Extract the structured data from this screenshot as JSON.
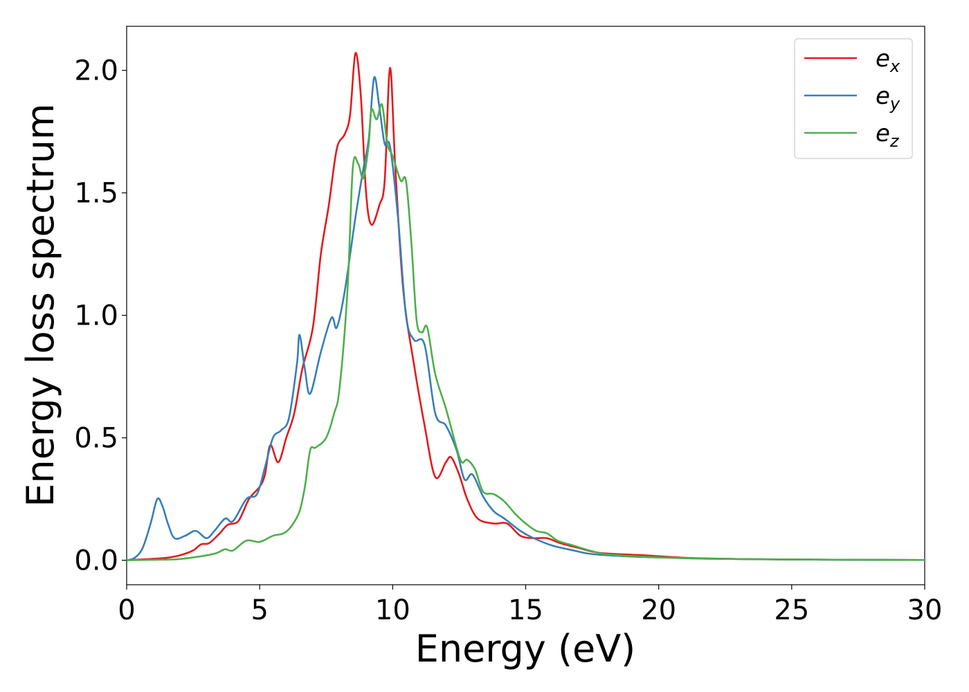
{
  "chart_data": {
    "type": "line",
    "xlabel": "Energy (eV)",
    "ylabel": "Energy loss spectrum",
    "xlim": [
      0,
      30
    ],
    "ylim": [
      -0.1,
      2.18
    ],
    "xticks": [
      0,
      5,
      10,
      15,
      20,
      25,
      30
    ],
    "xtick_labels": [
      "0",
      "5",
      "10",
      "15",
      "20",
      "25",
      "30"
    ],
    "yticks": [
      0.0,
      0.5,
      1.0,
      1.5,
      2.0
    ],
    "ytick_labels": [
      "0.0",
      "0.5",
      "1.0",
      "1.5",
      "2.0"
    ],
    "grid": false,
    "legend_position": "top-right",
    "series": [
      {
        "name": "e_x",
        "label_main": "e",
        "label_sub": "x",
        "color": "#e41a1c",
        "points": [
          [
            0,
            0
          ],
          [
            0.5,
            0.003
          ],
          [
            1,
            0.006
          ],
          [
            1.5,
            0.01
          ],
          [
            2,
            0.02
          ],
          [
            2.5,
            0.04
          ],
          [
            2.8,
            0.065
          ],
          [
            3.1,
            0.07
          ],
          [
            3.5,
            0.11
          ],
          [
            3.8,
            0.145
          ],
          [
            4.2,
            0.16
          ],
          [
            4.6,
            0.25
          ],
          [
            5.0,
            0.3
          ],
          [
            5.2,
            0.35
          ],
          [
            5.4,
            0.47
          ],
          [
            5.7,
            0.4
          ],
          [
            6.0,
            0.5
          ],
          [
            6.3,
            0.6
          ],
          [
            6.6,
            0.78
          ],
          [
            7.0,
            0.95
          ],
          [
            7.3,
            1.25
          ],
          [
            7.6,
            1.45
          ],
          [
            7.9,
            1.68
          ],
          [
            8.2,
            1.74
          ],
          [
            8.4,
            1.82
          ],
          [
            8.6,
            2.07
          ],
          [
            8.8,
            1.9
          ],
          [
            9.0,
            1.5
          ],
          [
            9.2,
            1.37
          ],
          [
            9.5,
            1.45
          ],
          [
            9.7,
            1.55
          ],
          [
            9.9,
            2.01
          ],
          [
            10.1,
            1.6
          ],
          [
            10.4,
            1.1
          ],
          [
            10.8,
            0.8
          ],
          [
            11.2,
            0.55
          ],
          [
            11.6,
            0.34
          ],
          [
            12.0,
            0.4
          ],
          [
            12.2,
            0.42
          ],
          [
            12.5,
            0.35
          ],
          [
            12.8,
            0.25
          ],
          [
            13.2,
            0.17
          ],
          [
            13.8,
            0.15
          ],
          [
            14.3,
            0.15
          ],
          [
            14.8,
            0.1
          ],
          [
            15.3,
            0.09
          ],
          [
            15.8,
            0.09
          ],
          [
            16.3,
            0.07
          ],
          [
            17.0,
            0.05
          ],
          [
            17.8,
            0.03
          ],
          [
            19.5,
            0.02
          ],
          [
            21,
            0.01
          ],
          [
            23,
            0.005
          ],
          [
            25,
            0.003
          ],
          [
            30,
            0.001
          ]
        ]
      },
      {
        "name": "e_y",
        "label_main": "e",
        "label_sub": "y",
        "color": "#377eb8",
        "points": [
          [
            0,
            0
          ],
          [
            0.3,
            0.01
          ],
          [
            0.6,
            0.05
          ],
          [
            0.9,
            0.15
          ],
          [
            1.15,
            0.25
          ],
          [
            1.35,
            0.22
          ],
          [
            1.55,
            0.15
          ],
          [
            1.8,
            0.09
          ],
          [
            2.2,
            0.1
          ],
          [
            2.6,
            0.12
          ],
          [
            3.0,
            0.09
          ],
          [
            3.3,
            0.12
          ],
          [
            3.7,
            0.17
          ],
          [
            4.0,
            0.16
          ],
          [
            4.5,
            0.25
          ],
          [
            4.9,
            0.27
          ],
          [
            5.2,
            0.38
          ],
          [
            5.5,
            0.5
          ],
          [
            5.8,
            0.53
          ],
          [
            6.1,
            0.58
          ],
          [
            6.4,
            0.8
          ],
          [
            6.5,
            0.92
          ],
          [
            6.7,
            0.78
          ],
          [
            6.9,
            0.68
          ],
          [
            7.3,
            0.85
          ],
          [
            7.7,
            0.99
          ],
          [
            7.9,
            0.95
          ],
          [
            8.2,
            1.1
          ],
          [
            8.6,
            1.4
          ],
          [
            8.9,
            1.6
          ],
          [
            9.1,
            1.72
          ],
          [
            9.3,
            1.97
          ],
          [
            9.5,
            1.85
          ],
          [
            9.7,
            1.7
          ],
          [
            9.9,
            1.69
          ],
          [
            10.2,
            1.4
          ],
          [
            10.5,
            1.0
          ],
          [
            10.8,
            0.9
          ],
          [
            11.2,
            0.88
          ],
          [
            11.6,
            0.6
          ],
          [
            12.0,
            0.55
          ],
          [
            12.4,
            0.45
          ],
          [
            12.7,
            0.33
          ],
          [
            13.0,
            0.35
          ],
          [
            13.4,
            0.26
          ],
          [
            13.8,
            0.2
          ],
          [
            14.2,
            0.17
          ],
          [
            14.8,
            0.12
          ],
          [
            15.3,
            0.09
          ],
          [
            16.0,
            0.06
          ],
          [
            16.8,
            0.04
          ],
          [
            17.5,
            0.025
          ],
          [
            19,
            0.015
          ],
          [
            20.5,
            0.01
          ],
          [
            22,
            0.006
          ],
          [
            25,
            0.003
          ],
          [
            30,
            0.001
          ]
        ]
      },
      {
        "name": "e_z",
        "label_main": "e",
        "label_sub": "z",
        "color": "#4daf4a",
        "points": [
          [
            0,
            0
          ],
          [
            1,
            0.002
          ],
          [
            2,
            0.005
          ],
          [
            3,
            0.02
          ],
          [
            3.4,
            0.03
          ],
          [
            3.7,
            0.045
          ],
          [
            4.0,
            0.04
          ],
          [
            4.5,
            0.08
          ],
          [
            5.0,
            0.075
          ],
          [
            5.5,
            0.1
          ],
          [
            5.9,
            0.11
          ],
          [
            6.2,
            0.14
          ],
          [
            6.5,
            0.2
          ],
          [
            6.7,
            0.3
          ],
          [
            6.9,
            0.45
          ],
          [
            7.1,
            0.46
          ],
          [
            7.5,
            0.5
          ],
          [
            7.8,
            0.6
          ],
          [
            8.0,
            0.7
          ],
          [
            8.3,
            1.1
          ],
          [
            8.5,
            1.6
          ],
          [
            8.7,
            1.62
          ],
          [
            8.9,
            1.56
          ],
          [
            9.1,
            1.7
          ],
          [
            9.2,
            1.84
          ],
          [
            9.4,
            1.8
          ],
          [
            9.6,
            1.86
          ],
          [
            9.8,
            1.7
          ],
          [
            10.0,
            1.65
          ],
          [
            10.3,
            1.55
          ],
          [
            10.5,
            1.55
          ],
          [
            10.7,
            1.3
          ],
          [
            10.9,
            0.98
          ],
          [
            11.1,
            0.93
          ],
          [
            11.3,
            0.95
          ],
          [
            11.6,
            0.76
          ],
          [
            12.0,
            0.62
          ],
          [
            12.4,
            0.46
          ],
          [
            12.6,
            0.4
          ],
          [
            12.8,
            0.41
          ],
          [
            13.1,
            0.37
          ],
          [
            13.4,
            0.28
          ],
          [
            13.8,
            0.27
          ],
          [
            14.2,
            0.24
          ],
          [
            14.6,
            0.19
          ],
          [
            15.0,
            0.15
          ],
          [
            15.4,
            0.12
          ],
          [
            15.8,
            0.11
          ],
          [
            16.2,
            0.08
          ],
          [
            16.8,
            0.06
          ],
          [
            17.4,
            0.04
          ],
          [
            18,
            0.025
          ],
          [
            19,
            0.017
          ],
          [
            20,
            0.012
          ],
          [
            22,
            0.006
          ],
          [
            25,
            0.003
          ],
          [
            30,
            0.001
          ]
        ]
      }
    ]
  }
}
